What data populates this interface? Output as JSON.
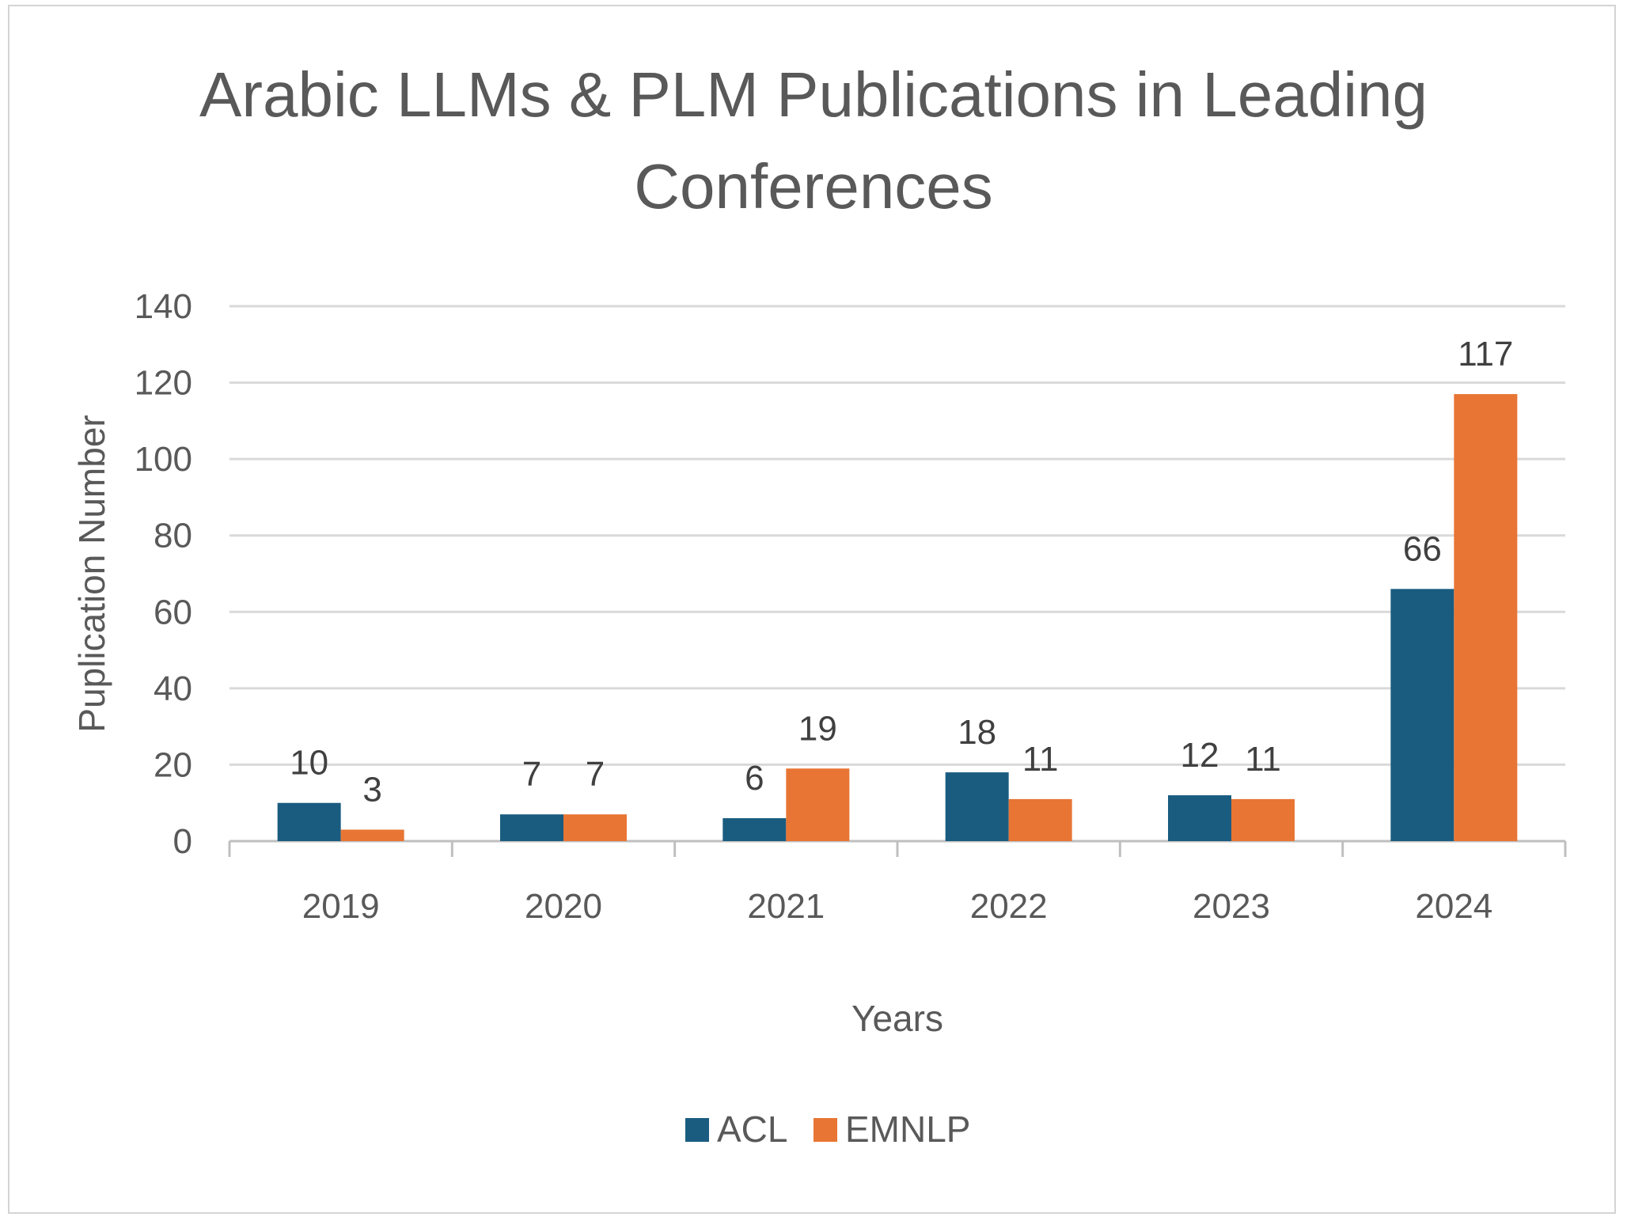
{
  "chart_data": {
    "type": "bar",
    "title": [
      "Arabic LLMs & PLM Publications in Leading",
      "Conferences"
    ],
    "xlabel": "Years",
    "ylabel": "Puplication Number",
    "categories": [
      "2019",
      "2020",
      "2021",
      "2022",
      "2023",
      "2024"
    ],
    "series": [
      {
        "name": "ACL",
        "color": "#1a5c80",
        "values": [
          10,
          7,
          6,
          18,
          12,
          66
        ]
      },
      {
        "name": "EMNLP",
        "color": "#e87534",
        "values": [
          3,
          7,
          19,
          11,
          11,
          117
        ]
      }
    ],
    "ylim": [
      0,
      140
    ],
    "yticks": [
      0,
      20,
      40,
      60,
      80,
      100,
      120,
      140
    ],
    "grid": true,
    "legend": "bottom",
    "data_labels": true
  }
}
